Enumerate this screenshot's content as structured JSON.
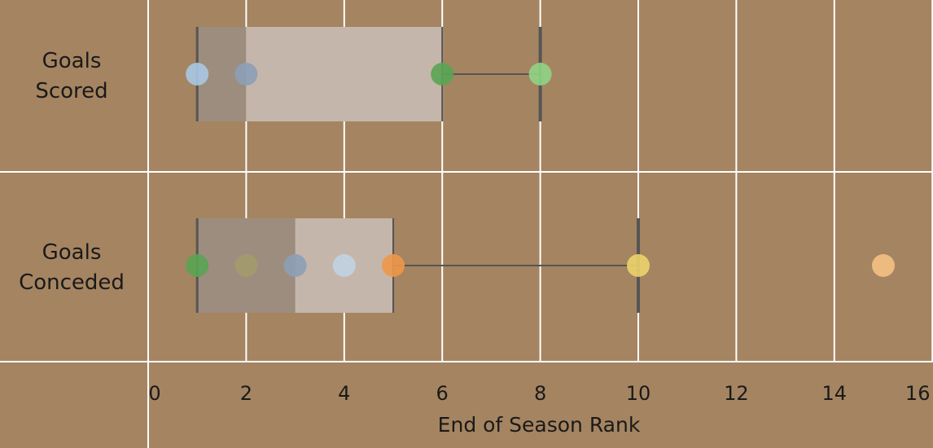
{
  "chart_data": {
    "type": "boxplot",
    "title": "",
    "xlabel": "End of Season Rank",
    "ylabel": "",
    "xlim": [
      0,
      16
    ],
    "xticks": [
      0,
      2,
      4,
      6,
      8,
      10,
      12,
      14,
      16
    ],
    "grid": true,
    "background": "#a58461",
    "categories": [
      {
        "label_lines": [
          "Goals",
          "Scored"
        ],
        "box": {
          "min": 1,
          "q1": 1,
          "median": 2,
          "q3": 6,
          "max": 8
        },
        "points": [
          {
            "x": 1,
            "color": "#a9c8e3"
          },
          {
            "x": 2,
            "color": "#8d9fb6"
          },
          {
            "x": 6,
            "color": "#5aa453"
          },
          {
            "x": 8,
            "color": "#8fd485"
          }
        ]
      },
      {
        "label_lines": [
          "Goals",
          "Conceded"
        ],
        "box": {
          "min": 1,
          "q1": 1,
          "median": 3,
          "q3": 5,
          "max": 10
        },
        "points": [
          {
            "x": 1,
            "color": "#5aa453"
          },
          {
            "x": 2,
            "color": "#a39a6e"
          },
          {
            "x": 3,
            "color": "#8d9fb6"
          },
          {
            "x": 4,
            "color": "#c2d3e3"
          },
          {
            "x": 5,
            "color": "#f0974a"
          },
          {
            "x": 10,
            "color": "#ecd36a"
          },
          {
            "x": 15,
            "color": "#f5c084"
          }
        ]
      }
    ]
  },
  "colors": {
    "grid": "#ffffff",
    "whisker": "#555555",
    "box_lower": "#9d8d7e",
    "box_upper": "#c4b6aa"
  }
}
